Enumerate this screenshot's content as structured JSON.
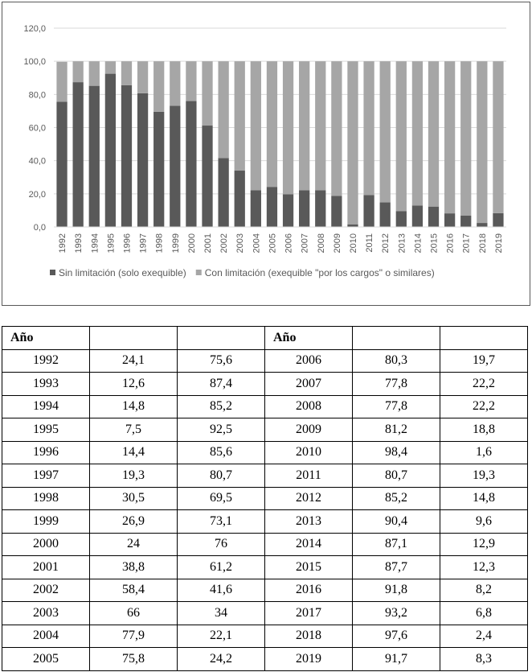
{
  "chart_data": {
    "type": "stacked-bar",
    "categories": [
      "1992",
      "1993",
      "1994",
      "1995",
      "1996",
      "1997",
      "1998",
      "1999",
      "2000",
      "2001",
      "2002",
      "2003",
      "2004",
      "2005",
      "2006",
      "2007",
      "2008",
      "2009",
      "2010",
      "2011",
      "2012",
      "2013",
      "2014",
      "2015",
      "2016",
      "2017",
      "2018",
      "2019"
    ],
    "series": [
      {
        "name": "Sin limitación (solo exequible)",
        "color": "#595959",
        "values": [
          75.6,
          87.4,
          85.2,
          92.5,
          85.6,
          80.7,
          69.5,
          73.1,
          76,
          61.2,
          41.6,
          34,
          22.1,
          24.2,
          19.7,
          22.2,
          22.2,
          18.8,
          1.6,
          19.3,
          14.8,
          9.6,
          12.9,
          12.3,
          8.2,
          6.8,
          2.4,
          8.3
        ]
      },
      {
        "name": "Con limitación (exequible \"por los cargos\" o similares)",
        "color": "#a6a6a6",
        "values": [
          24.1,
          12.6,
          14.8,
          7.5,
          14.4,
          19.3,
          30.5,
          26.9,
          24,
          38.8,
          58.4,
          66,
          77.9,
          75.8,
          80.3,
          77.8,
          77.8,
          81.2,
          98.4,
          80.7,
          85.2,
          90.4,
          87.1,
          87.7,
          91.8,
          93.2,
          97.6,
          91.7
        ]
      }
    ],
    "ylim": [
      0,
      120
    ],
    "yticks": [
      {
        "value": 0,
        "label": "0,0"
      },
      {
        "value": 20,
        "label": "20,0"
      },
      {
        "value": 40,
        "label": "40,0"
      },
      {
        "value": 60,
        "label": "60,0"
      },
      {
        "value": 80,
        "label": "80,0"
      },
      {
        "value": 100,
        "label": "100,0"
      },
      {
        "value": 120,
        "label": "120,0"
      }
    ],
    "grid": true,
    "legend": "bottom"
  },
  "table": {
    "header": [
      "Año",
      "Año"
    ],
    "rows": [
      [
        "1992",
        "24,1",
        "75,6",
        "2006",
        "80,3",
        "19,7"
      ],
      [
        "1993",
        "12,6",
        "87,4",
        "2007",
        "77,8",
        "22,2"
      ],
      [
        "1994",
        "14,8",
        "85,2",
        "2008",
        "77,8",
        "22,2"
      ],
      [
        "1995",
        "7,5",
        "92,5",
        "2009",
        "81,2",
        "18,8"
      ],
      [
        "1996",
        "14,4",
        "85,6",
        "2010",
        "98,4",
        "1,6"
      ],
      [
        "1997",
        "19,3",
        "80,7",
        "2011",
        "80,7",
        "19,3"
      ],
      [
        "1998",
        "30,5",
        "69,5",
        "2012",
        "85,2",
        "14,8"
      ],
      [
        "1999",
        "26,9",
        "73,1",
        "2013",
        "90,4",
        "9,6"
      ],
      [
        "2000",
        "24",
        "76",
        "2014",
        "87,1",
        "12,9"
      ],
      [
        "2001",
        "38,8",
        "61,2",
        "2015",
        "87,7",
        "12,3"
      ],
      [
        "2002",
        "58,4",
        "41,6",
        "2016",
        "91,8",
        "8,2"
      ],
      [
        "2003",
        "66",
        "34",
        "2017",
        "93,2",
        "6,8"
      ],
      [
        "2004",
        "77,9",
        "22,1",
        "2018",
        "97,6",
        "2,4"
      ],
      [
        "2005",
        "75,8",
        "24,2",
        "2019",
        "91,7",
        "8,3"
      ]
    ]
  }
}
